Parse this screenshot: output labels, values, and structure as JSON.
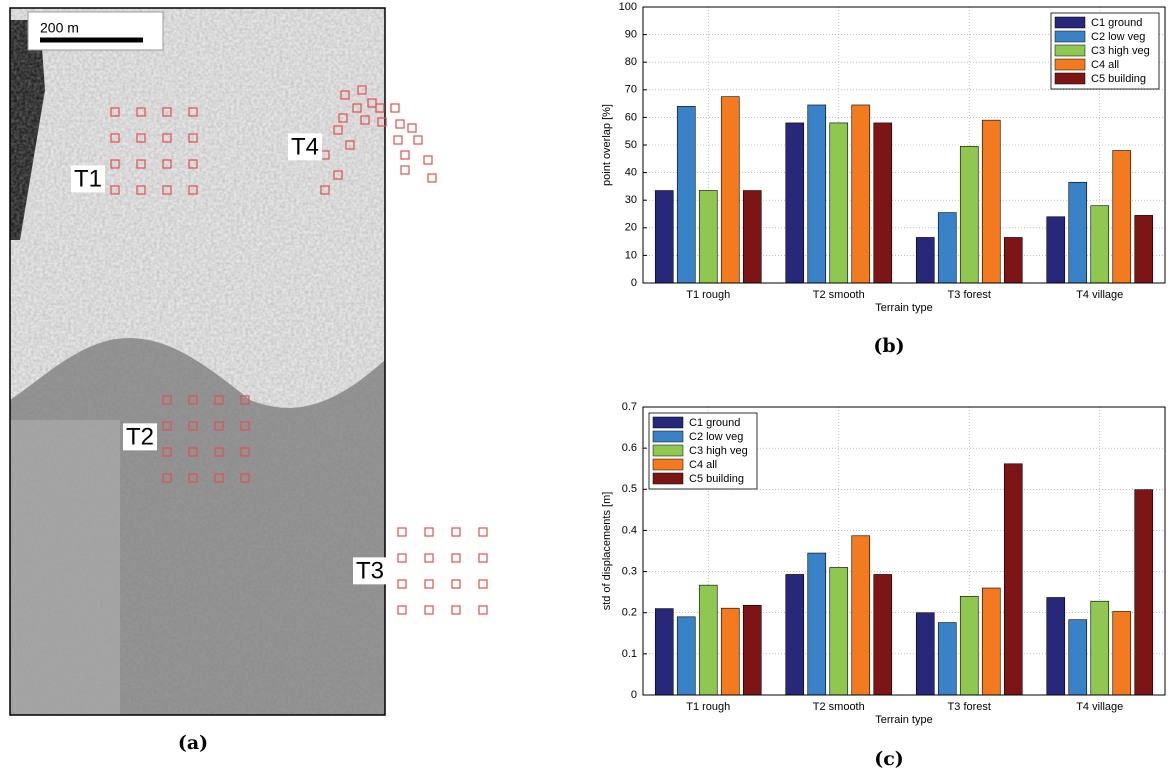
{
  "map": {
    "scale_label": "200 m",
    "regions": [
      "T1",
      "T2",
      "T3",
      "T4"
    ],
    "caption": "(a)"
  },
  "chart_data": [
    {
      "type": "bar",
      "caption": "(b)",
      "xlabel": "Terrain type",
      "ylabel": "point overlap [%]",
      "categories": [
        "T1 rough",
        "T2 smooth",
        "T3 forest",
        "T4 village"
      ],
      "series": [
        {
          "name": "C1 ground",
          "color": "#27287a",
          "values": [
            33.5,
            58,
            16.5,
            24
          ]
        },
        {
          "name": "C2 low veg",
          "color": "#3a82c8",
          "values": [
            64,
            64.5,
            25.5,
            36.5
          ]
        },
        {
          "name": "C3 high veg",
          "color": "#8fc750",
          "values": [
            33.5,
            58,
            49.5,
            28
          ]
        },
        {
          "name": "C4 all",
          "color": "#f47a20",
          "values": [
            67.5,
            64.5,
            59,
            48
          ]
        },
        {
          "name": "C5 building",
          "color": "#7d1416",
          "values": [
            33.5,
            58,
            16.5,
            24.5
          ]
        }
      ],
      "ylim": [
        0,
        100
      ],
      "yticks": [
        0,
        10,
        20,
        30,
        40,
        50,
        60,
        70,
        80,
        90,
        100
      ],
      "grid": true,
      "legend": "upper right"
    },
    {
      "type": "bar",
      "caption": "(c)",
      "xlabel": "Terrain type",
      "ylabel": "std of displacements [m]",
      "categories": [
        "T1 rough",
        "T2 smooth",
        "T3 forest",
        "T4 village"
      ],
      "series": [
        {
          "name": "C1 ground",
          "color": "#27287a",
          "values": [
            0.21,
            0.293,
            0.2,
            0.237
          ]
        },
        {
          "name": "C2 low veg",
          "color": "#3a82c8",
          "values": [
            0.19,
            0.345,
            0.176,
            0.183
          ]
        },
        {
          "name": "C3 high veg",
          "color": "#8fc750",
          "values": [
            0.267,
            0.31,
            0.24,
            0.228
          ]
        },
        {
          "name": "C4 all",
          "color": "#f47a20",
          "values": [
            0.211,
            0.387,
            0.26,
            0.203
          ]
        },
        {
          "name": "C5 building",
          "color": "#7d1416",
          "values": [
            0.218,
            0.293,
            0.562,
            0.499
          ]
        }
      ],
      "ylim": [
        0,
        0.7
      ],
      "yticks": [
        0,
        0.1,
        0.2,
        0.3,
        0.4,
        0.5,
        0.6,
        0.7
      ],
      "grid": true,
      "legend": "upper left"
    }
  ]
}
